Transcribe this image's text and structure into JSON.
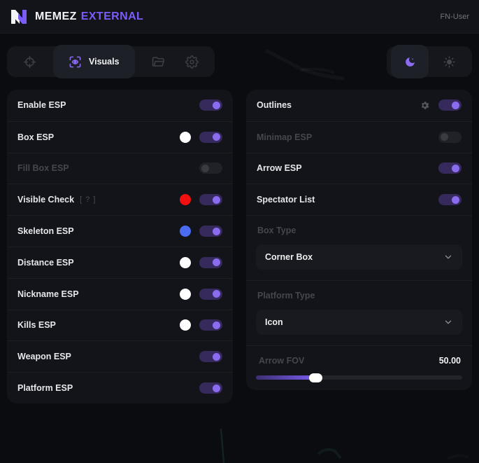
{
  "header": {
    "brand_primary": "MEMEZ",
    "brand_secondary": "EXTERNAL",
    "user_label": "FN-User"
  },
  "tabbar": {
    "tabs": [
      {
        "name": "aim",
        "icon": "crosshair-icon",
        "active": false
      },
      {
        "name": "visuals",
        "icon": "eye-icon",
        "label": "Visuals",
        "active": true
      },
      {
        "name": "configs",
        "icon": "folder-icon",
        "active": false
      },
      {
        "name": "settings",
        "icon": "gear-icon",
        "active": false
      }
    ],
    "theme": {
      "active": "dark",
      "dark_icon": "moon-icon",
      "light_icon": "sun-icon"
    }
  },
  "left_panel": {
    "rows": [
      {
        "label": "Enable ESP",
        "toggle": true
      },
      {
        "label": "Box ESP",
        "swatch": "#ffffff",
        "toggle": true
      },
      {
        "label": "Fill Box ESP",
        "toggle": false,
        "disabled": true
      },
      {
        "label": "Visible Check",
        "hint": "[ ? ]",
        "swatch": "#f10f0f",
        "toggle": true
      },
      {
        "label": "Skeleton ESP",
        "swatch": "#4a6cf0",
        "toggle": true
      },
      {
        "label": "Distance ESP",
        "swatch": "#ffffff",
        "toggle": true
      },
      {
        "label": "Nickname ESP",
        "swatch": "#ffffff",
        "toggle": true
      },
      {
        "label": "Kills ESP",
        "swatch": "#ffffff",
        "toggle": true
      },
      {
        "label": "Weapon ESP",
        "toggle": true
      },
      {
        "label": "Platform ESP",
        "toggle": true
      }
    ]
  },
  "right_panel": {
    "rows": [
      {
        "label": "Outlines",
        "has_settings": true,
        "toggle": true
      },
      {
        "label": "Minimap ESP",
        "toggle": false,
        "disabled": true
      },
      {
        "label": "Arrow ESP",
        "toggle": true
      },
      {
        "label": "Spectator List",
        "toggle": true
      }
    ],
    "box_type": {
      "label": "Box Type",
      "value": "Corner Box"
    },
    "platform_type": {
      "label": "Platform Type",
      "value": "Icon"
    },
    "arrow_fov": {
      "label": "Arrow FOV",
      "value": "50.00",
      "percent": 29
    }
  },
  "colors": {
    "accent": "#7b5cfa",
    "toggle_track_on": "#36295c",
    "toggle_knob_on": "#8a6cee",
    "swatch_white": "#ffffff",
    "swatch_red": "#f10f0f",
    "swatch_blue": "#4a6cf0"
  }
}
